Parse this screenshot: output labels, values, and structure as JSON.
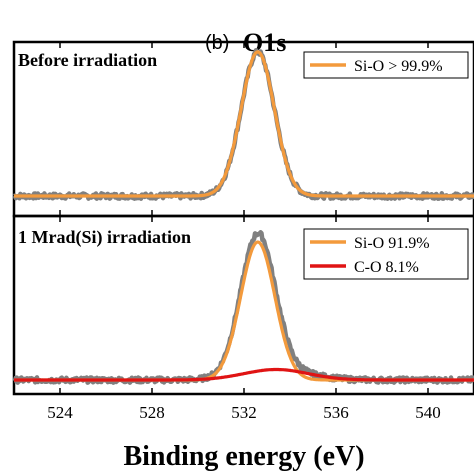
{
  "figure": {
    "panel_label": "(b)",
    "title": "O1s"
  },
  "chart_data": [
    {
      "type": "line",
      "subtitle": "Before irradiation",
      "xlabel": "Binding energy (eV)",
      "ylabel": "",
      "xlim": [
        522,
        542
      ],
      "xticks": [
        524,
        528,
        532,
        536,
        540
      ],
      "ylim": [
        0,
        1
      ],
      "legend_position": "top-right",
      "colors": {
        "raw": "#808080",
        "fit_si_o": "#f39a3c",
        "fit_c_o": "#e01414"
      },
      "series": [
        {
          "name": "Si-O > 99.9%",
          "kind": "gaussian",
          "center": 532.6,
          "fwhm": 1.7,
          "height": 0.93,
          "baseline": 0.0
        }
      ]
    },
    {
      "type": "line",
      "subtitle": "1 Mrad(Si) irradiation",
      "xlabel": "Binding energy (eV)",
      "ylabel": "",
      "xlim": [
        522,
        542
      ],
      "xticks": [
        524,
        528,
        532,
        536,
        540
      ],
      "ylim": [
        0,
        1
      ],
      "legend_position": "top-right",
      "colors": {
        "raw": "#808080",
        "fit_si_o": "#f39a3c",
        "fit_c_o": "#e01414"
      },
      "series": [
        {
          "name": "Si-O 91.9%",
          "kind": "gaussian",
          "center": 532.6,
          "fwhm": 1.75,
          "height": 0.92,
          "baseline": 0.0
        },
        {
          "name": "C-O 8.1%",
          "kind": "gaussian",
          "center": 533.4,
          "fwhm": 3.3,
          "height": 0.07,
          "baseline": 0.0
        }
      ]
    }
  ]
}
